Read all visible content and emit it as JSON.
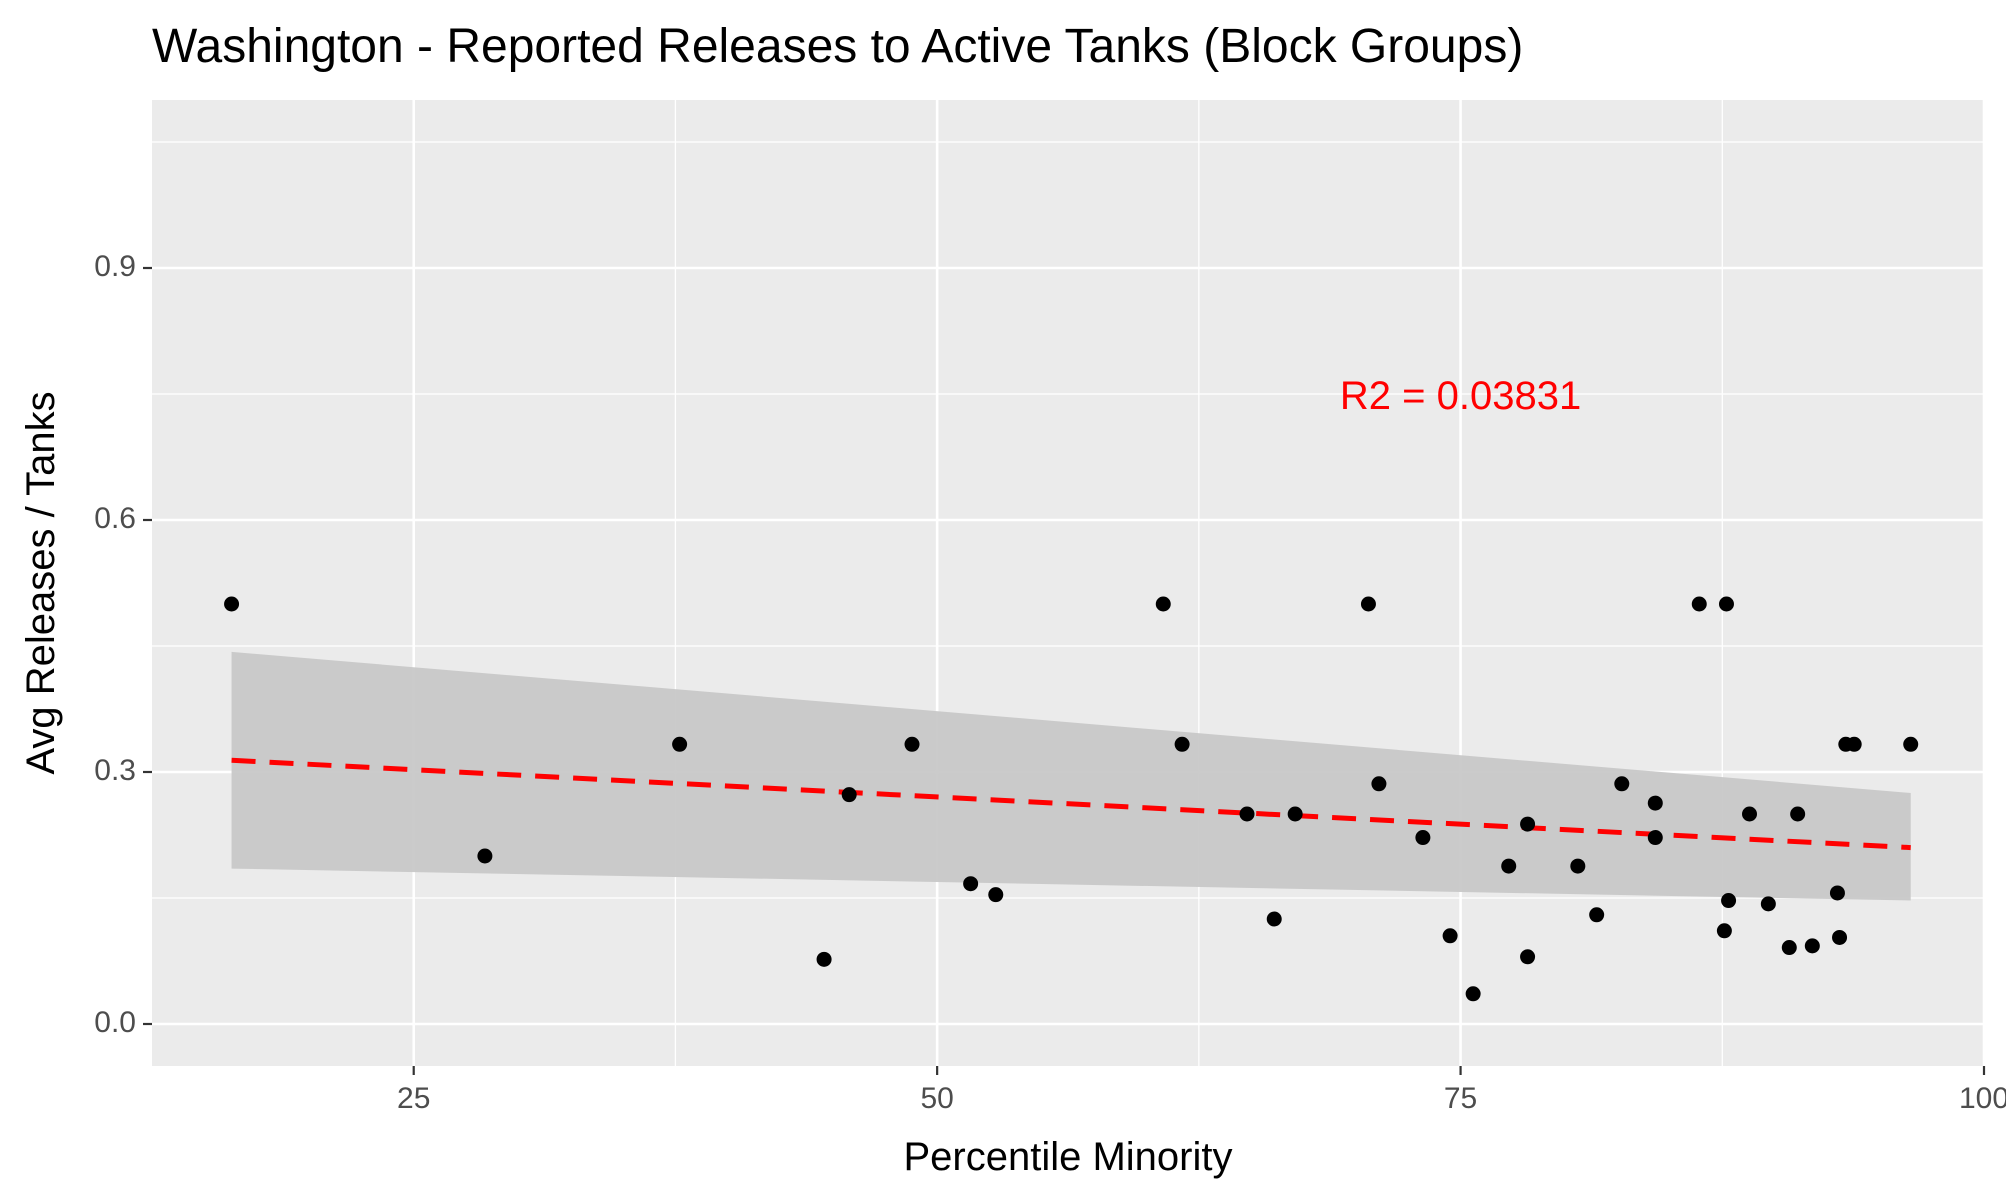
{
  "chart_data": {
    "type": "scatter",
    "title": "Washington - Reported Releases to Active Tanks (Block Groups)",
    "xlabel": "Percentile Minority",
    "ylabel": "Avg Releases / Tanks",
    "xlim": [
      12.5,
      100
    ],
    "ylim": [
      -0.05,
      1.1
    ],
    "x_ticks": [
      25,
      50,
      75,
      100
    ],
    "x_tick_labels": [
      "25",
      "50",
      "75",
      "100"
    ],
    "y_ticks": [
      0.0,
      0.3,
      0.6,
      0.9
    ],
    "y_tick_labels": [
      "0.0",
      "0.3",
      "0.6",
      "0.9"
    ],
    "grid": true,
    "colors": {
      "panel_background": "#ebebeb",
      "grid": "#ffffff",
      "points": "#000000",
      "trend_line": "#ff0000",
      "ribbon": "#c8c8c8",
      "annotation": "#ff0000"
    },
    "points": [
      {
        "x": 16.3,
        "y": 0.5
      },
      {
        "x": 28.4,
        "y": 0.2
      },
      {
        "x": 37.7,
        "y": 0.333
      },
      {
        "x": 44.6,
        "y": 0.077
      },
      {
        "x": 45.8,
        "y": 0.273
      },
      {
        "x": 48.8,
        "y": 0.333
      },
      {
        "x": 51.6,
        "y": 0.167
      },
      {
        "x": 52.8,
        "y": 0.154
      },
      {
        "x": 60.8,
        "y": 0.5
      },
      {
        "x": 61.7,
        "y": 0.333
      },
      {
        "x": 64.8,
        "y": 0.25
      },
      {
        "x": 66.1,
        "y": 0.125
      },
      {
        "x": 67.1,
        "y": 0.25
      },
      {
        "x": 70.6,
        "y": 0.5
      },
      {
        "x": 71.1,
        "y": 0.286
      },
      {
        "x": 73.2,
        "y": 0.222
      },
      {
        "x": 74.5,
        "y": 0.105
      },
      {
        "x": 75.6,
        "y": 0.036
      },
      {
        "x": 77.3,
        "y": 0.188
      },
      {
        "x": 78.2,
        "y": 0.238
      },
      {
        "x": 78.2,
        "y": 0.08
      },
      {
        "x": 80.6,
        "y": 0.188
      },
      {
        "x": 81.5,
        "y": 0.13
      },
      {
        "x": 82.7,
        "y": 0.286
      },
      {
        "x": 84.3,
        "y": 0.263
      },
      {
        "x": 84.3,
        "y": 0.222
      },
      {
        "x": 86.4,
        "y": 0.5
      },
      {
        "x": 87.7,
        "y": 0.5
      },
      {
        "x": 87.6,
        "y": 0.111
      },
      {
        "x": 87.8,
        "y": 0.147
      },
      {
        "x": 88.8,
        "y": 0.25
      },
      {
        "x": 89.7,
        "y": 0.143
      },
      {
        "x": 90.7,
        "y": 0.091
      },
      {
        "x": 91.1,
        "y": 0.25
      },
      {
        "x": 91.8,
        "y": 0.093
      },
      {
        "x": 93.0,
        "y": 0.156
      },
      {
        "x": 93.1,
        "y": 0.103
      },
      {
        "x": 93.4,
        "y": 0.333
      },
      {
        "x": 93.8,
        "y": 0.333
      },
      {
        "x": 96.5,
        "y": 0.333
      }
    ],
    "trend_line": {
      "x": [
        16.3,
        96.5
      ],
      "y": [
        0.314,
        0.21
      ]
    },
    "confidence_band": {
      "x": [
        16.3,
        96.5
      ],
      "upper": [
        0.443,
        0.275
      ],
      "lower": [
        0.185,
        0.147
      ]
    },
    "annotation": {
      "text": "R2 =  0.03831",
      "x": 75.0,
      "y": 0.745
    }
  }
}
